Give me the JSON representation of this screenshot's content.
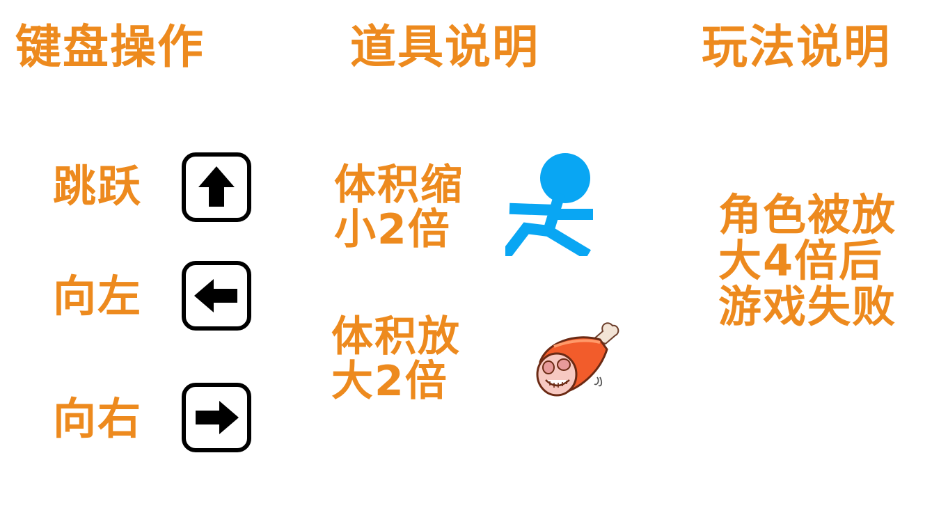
{
  "headings": {
    "keys": "键盘操作",
    "items": "道具说明",
    "rules": "玩法说明"
  },
  "controls": [
    {
      "label": "跳跃",
      "key_icon": "arrow-up-key-icon"
    },
    {
      "label": "向左",
      "key_icon": "arrow-left-key-icon"
    },
    {
      "label": "向右",
      "key_icon": "arrow-right-key-icon"
    }
  ],
  "items": [
    {
      "line1": "体积缩",
      "line2": "小2倍",
      "icon": "blue-stickman-runner-icon",
      "color": "#09A6F3"
    },
    {
      "line1": "体积放",
      "line2": "大2倍",
      "icon": "ham-leg-meat-icon",
      "color": "#F25C2B"
    }
  ],
  "rules": {
    "line1": "角色被放",
    "line2": "大4倍后",
    "line3": "游戏失败"
  },
  "colors": {
    "accent": "#ED8A1E",
    "key_border": "#000000",
    "stickman": "#09A6F3"
  }
}
